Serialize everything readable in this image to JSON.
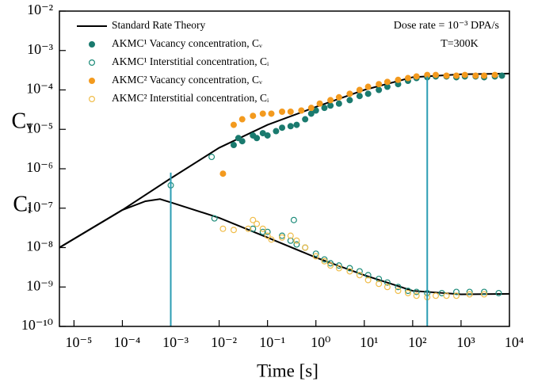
{
  "chart_data": {
    "type": "scatter",
    "x_label": "Time [s]",
    "y_labels": [
      "Cᵥ",
      "Cᵢ"
    ],
    "annotations": [
      "Dose rate = 10⁻³ DPA/s",
      "T=300K"
    ],
    "log_x": true,
    "log_y": true,
    "xlim": [
      5e-06,
      10000
    ],
    "ylim": [
      1e-10,
      0.01
    ],
    "xticks": [
      {
        "value": 1e-05,
        "label": "10⁻⁵"
      },
      {
        "value": 0.0001,
        "label": "10⁻⁴"
      },
      {
        "value": 0.001,
        "label": "10⁻³"
      },
      {
        "value": 0.01,
        "label": "10⁻²"
      },
      {
        "value": 0.1,
        "label": "10⁻¹"
      },
      {
        "value": 1,
        "label": "10⁰"
      },
      {
        "value": 10,
        "label": "10¹"
      },
      {
        "value": 100,
        "label": "10²"
      },
      {
        "value": 1000,
        "label": "10³"
      },
      {
        "value": 10000,
        "label": "10⁴"
      }
    ],
    "yticks": [
      {
        "value": 1e-10,
        "label": "10⁻¹⁰"
      },
      {
        "value": 1e-09,
        "label": "10⁻⁹"
      },
      {
        "value": 1e-08,
        "label": "10⁻⁸"
      },
      {
        "value": 1e-07,
        "label": "10⁻⁷"
      },
      {
        "value": 1e-06,
        "label": "10⁻⁶"
      },
      {
        "value": 1e-05,
        "label": "10⁻⁵"
      },
      {
        "value": 0.0001,
        "label": "10⁻⁴"
      },
      {
        "value": 0.001,
        "label": "10⁻³"
      },
      {
        "value": 0.01,
        "label": "10⁻²"
      }
    ],
    "vlines": [
      {
        "x": 0.001,
        "y_top": 8e-07,
        "color": "#2b9db3"
      },
      {
        "x": 200,
        "y_top": 0.00022,
        "color": "#2b9db3"
      }
    ],
    "series": [
      {
        "name": "Standard Rate Theory",
        "kind": "line",
        "color": "#000000",
        "x": [
          5e-06,
          0.0001,
          0.001,
          0.01,
          0.1,
          1,
          10,
          100,
          1000,
          10000
        ],
        "values": [
          1e-08,
          9e-08,
          5.7e-07,
          3.4e-06,
          1.3e-05,
          3.7e-05,
          0.0001,
          0.00021,
          0.00025,
          0.00026
        ]
      },
      {
        "name": "AKMC¹ Vacancy concentration, Cᵥ",
        "kind": "filled",
        "color": "#1a7a6e",
        "x": [
          0.02,
          0.025,
          0.03,
          0.05,
          0.06,
          0.08,
          0.1,
          0.15,
          0.2,
          0.3,
          0.4,
          0.6,
          0.8,
          1,
          1.5,
          2,
          3,
          5,
          8,
          12,
          20,
          30,
          50,
          80,
          120,
          200,
          300,
          500,
          800,
          1200,
          2000,
          3000,
          5000,
          7000
        ],
        "values": [
          4e-06,
          6e-06,
          5e-06,
          7e-06,
          6e-06,
          8e-06,
          7e-06,
          9e-06,
          1.1e-05,
          1.2e-05,
          1.3e-05,
          1.8e-05,
          2.5e-05,
          3e-05,
          3.5e-05,
          4e-05,
          4.5e-05,
          5.5e-05,
          7e-05,
          8e-05,
          0.0001,
          0.00012,
          0.00014,
          0.00017,
          0.0002,
          0.00021,
          0.00022,
          0.00022,
          0.00021,
          0.00022,
          0.00022,
          0.00021,
          0.00022,
          0.00023
        ]
      },
      {
        "name": "AKMC¹ Interstitial concentration, Cᵢ",
        "kind": "open",
        "color": "#1a8a78",
        "x": [
          0.001,
          0.007,
          0.008,
          0.35,
          0.05,
          0.08,
          0.1,
          0.2,
          0.3,
          0.4,
          0.6,
          1,
          1.5,
          2,
          3,
          5,
          8,
          12,
          20,
          30,
          50,
          80,
          120,
          200,
          400,
          800,
          1500,
          3000,
          6000
        ],
        "values": [
          3.8e-07,
          2e-06,
          5.5e-08,
          5e-08,
          3e-08,
          2.5e-08,
          2.5e-08,
          2e-08,
          1.5e-08,
          1.2e-08,
          1e-08,
          7e-09,
          5e-09,
          4e-09,
          3.5e-09,
          3e-09,
          2.5e-09,
          2e-09,
          1.6e-09,
          1.3e-09,
          1e-09,
          8e-10,
          7.5e-10,
          7e-10,
          7e-10,
          7.5e-10,
          7.5e-10,
          7.5e-10,
          7e-10
        ]
      },
      {
        "name": "AKMC² Vacancy concentration, Cᵥ",
        "kind": "filled",
        "color": "#f39a1e",
        "x": [
          0.012,
          0.02,
          0.03,
          0.05,
          0.08,
          0.12,
          0.2,
          0.3,
          0.5,
          0.8,
          1.2,
          2,
          3,
          5,
          8,
          12,
          20,
          30,
          50,
          80,
          120,
          200,
          300,
          500,
          800,
          1200,
          2000,
          3000,
          5000
        ],
        "values": [
          7.5e-07,
          1.3e-05,
          1.8e-05,
          2.2e-05,
          2.5e-05,
          2.5e-05,
          2.8e-05,
          2.8e-05,
          3e-05,
          3.5e-05,
          4.5e-05,
          5.5e-05,
          6.5e-05,
          8e-05,
          0.0001,
          0.00012,
          0.00014,
          0.00016,
          0.00018,
          0.0002,
          0.00022,
          0.00024,
          0.00024,
          0.00023,
          0.00023,
          0.00024,
          0.00023,
          0.00023,
          0.00024
        ]
      },
      {
        "name": "AKMC² Interstitial concentration, Cᵢ",
        "kind": "open",
        "color": "#f0bd4a",
        "x": [
          0.012,
          0.02,
          0.04,
          0.05,
          0.06,
          0.08,
          0.1,
          0.12,
          0.2,
          0.3,
          0.4,
          0.6,
          1,
          1.5,
          2,
          3,
          5,
          8,
          12,
          20,
          30,
          50,
          80,
          120,
          200,
          300,
          500,
          800,
          1500,
          3000
        ],
        "values": [
          3e-08,
          2.8e-08,
          3e-08,
          5e-08,
          4e-08,
          3e-08,
          2e-08,
          1.6e-08,
          1.8e-08,
          2e-08,
          1.5e-08,
          1e-08,
          6e-09,
          4.5e-09,
          3.5e-09,
          3e-09,
          2.5e-09,
          2e-09,
          1.5e-09,
          1.2e-09,
          1e-09,
          8e-10,
          7e-10,
          6e-10,
          5.5e-10,
          6e-10,
          6e-10,
          6e-10,
          6.5e-10,
          6.5e-10
        ]
      }
    ],
    "extra_lines": [
      {
        "color": "#000000",
        "x": [
          5e-06,
          0.0001,
          0.0003,
          0.0006,
          0.001,
          0.01,
          0.1,
          1,
          10,
          100,
          1000,
          10000
        ],
        "values": [
          1e-08,
          9e-08,
          1.5e-07,
          1.7e-07,
          1.4e-07,
          5.7e-08,
          1.8e-08,
          5.6e-09,
          2e-09,
          8e-10,
          6.5e-10,
          6.7e-10
        ]
      }
    ]
  }
}
